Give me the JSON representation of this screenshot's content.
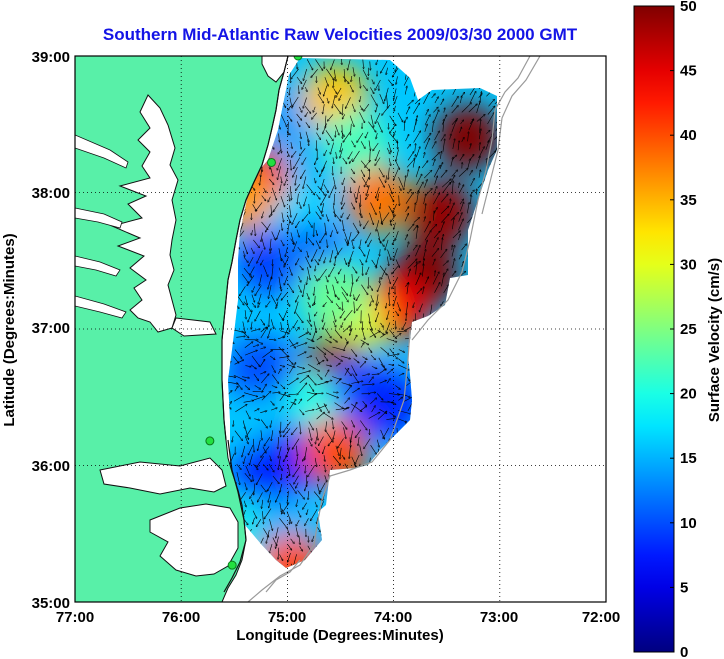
{
  "title": "Southern Mid-Atlantic Raw Velocities 2009/03/30 2000 GMT",
  "xlabel": "Longitude (Degrees:Minutes)",
  "ylabel": "Latitude (Degrees:Minutes)",
  "x_ticks": [
    "77:00",
    "76:00",
    "75:00",
    "74:00",
    "73:00",
    "72:00"
  ],
  "y_ticks": [
    "39:00",
    "38:00",
    "37:00",
    "36:00",
    "35:00"
  ],
  "colorbar": {
    "label": "Surface Velocity (cm/s)",
    "ticks": [
      "0",
      "5",
      "10",
      "15",
      "20",
      "25",
      "30",
      "35",
      "40",
      "45",
      "50"
    ],
    "min": 0,
    "max": 50
  },
  "map": {
    "lon_range": [
      -77,
      -72
    ],
    "lat_range": [
      35,
      39
    ],
    "land_color": "#58f0a8",
    "coast_color": "#111111",
    "grid_style": "dotted"
  },
  "stations": [
    {
      "lon": -74.9,
      "lat": 39.0
    },
    {
      "lon": -75.15,
      "lat": 38.22
    },
    {
      "lon": -75.73,
      "lat": 36.18
    },
    {
      "lon": -75.52,
      "lat": 35.27
    }
  ],
  "velocity_blobs": [
    {
      "lon": -74.95,
      "lat": 38.55,
      "speed": 14
    },
    {
      "lon": -74.7,
      "lat": 38.2,
      "speed": 15
    },
    {
      "lon": -74.95,
      "lat": 37.85,
      "speed": 17
    },
    {
      "lon": -75.15,
      "lat": 37.5,
      "speed": 9
    },
    {
      "lon": -74.75,
      "lat": 37.55,
      "speed": 12
    },
    {
      "lon": -74.55,
      "lat": 38.7,
      "speed": 34
    },
    {
      "lon": -74.35,
      "lat": 38.35,
      "speed": 22
    },
    {
      "lon": -75.3,
      "lat": 38.1,
      "speed": 44
    },
    {
      "lon": -75.45,
      "lat": 37.95,
      "speed": 36
    },
    {
      "lon": -74.15,
      "lat": 37.95,
      "speed": 38
    },
    {
      "lon": -73.55,
      "lat": 37.85,
      "speed": 49
    },
    {
      "lon": -73.3,
      "lat": 38.4,
      "speed": 50
    },
    {
      "lon": -73.7,
      "lat": 37.4,
      "speed": 50
    },
    {
      "lon": -74.0,
      "lat": 37.15,
      "speed": 44
    },
    {
      "lon": -74.4,
      "lat": 37.05,
      "speed": 30
    },
    {
      "lon": -74.55,
      "lat": 37.25,
      "speed": 24
    },
    {
      "lon": -74.55,
      "lat": 36.7,
      "speed": 49
    },
    {
      "lon": -74.3,
      "lat": 36.55,
      "speed": 10
    },
    {
      "lon": -74.05,
      "lat": 36.45,
      "speed": 8
    },
    {
      "lon": -74.85,
      "lat": 36.45,
      "speed": 20
    },
    {
      "lon": -75.25,
      "lat": 36.7,
      "speed": 10
    },
    {
      "lon": -75.2,
      "lat": 36.25,
      "speed": 16
    },
    {
      "lon": -74.95,
      "lat": 36.05,
      "speed": 7
    },
    {
      "lon": -74.55,
      "lat": 36.1,
      "speed": 40
    },
    {
      "lon": -75.2,
      "lat": 35.95,
      "speed": 8
    },
    {
      "lon": -75.3,
      "lat": 35.5,
      "speed": 20
    },
    {
      "lon": -75.05,
      "lat": 35.5,
      "speed": 15
    },
    {
      "lon": -74.95,
      "lat": 35.25,
      "speed": 40
    }
  ]
}
